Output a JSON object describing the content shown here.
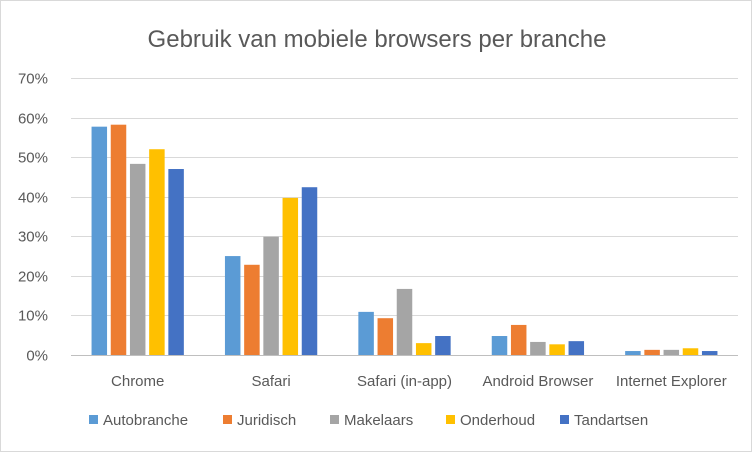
{
  "chart_data": {
    "type": "bar",
    "title": "Gebruik van mobiele browsers per branche",
    "xlabel": "",
    "ylabel": "",
    "ylim": [
      0,
      70
    ],
    "yticks": [
      "0%",
      "10%",
      "20%",
      "30%",
      "40%",
      "50%",
      "60%",
      "70%"
    ],
    "ytick_values": [
      0,
      10,
      20,
      30,
      40,
      50,
      60,
      70
    ],
    "grid": true,
    "legend_position": "bottom",
    "categories": [
      "Chrome",
      "Safari",
      "Safari (in-app)",
      "Android Browser",
      "Internet Explorer"
    ],
    "series": [
      {
        "name": "Autobranche",
        "color": "#5b9bd5",
        "values": [
          57.7,
          25.0,
          10.9,
          4.8,
          1.0
        ]
      },
      {
        "name": "Juridisch",
        "color": "#ed7d31",
        "values": [
          58.2,
          22.8,
          9.3,
          7.6,
          1.3
        ]
      },
      {
        "name": "Makelaars",
        "color": "#a5a5a5",
        "values": [
          48.3,
          29.9,
          16.7,
          3.3,
          1.3
        ]
      },
      {
        "name": "Onderhoud",
        "color": "#ffc000",
        "values": [
          52.0,
          39.7,
          3.0,
          2.7,
          1.7
        ]
      },
      {
        "name": "Tandartsen",
        "color": "#4472c4",
        "values": [
          47.0,
          42.4,
          4.8,
          3.5,
          1.0
        ]
      }
    ]
  }
}
